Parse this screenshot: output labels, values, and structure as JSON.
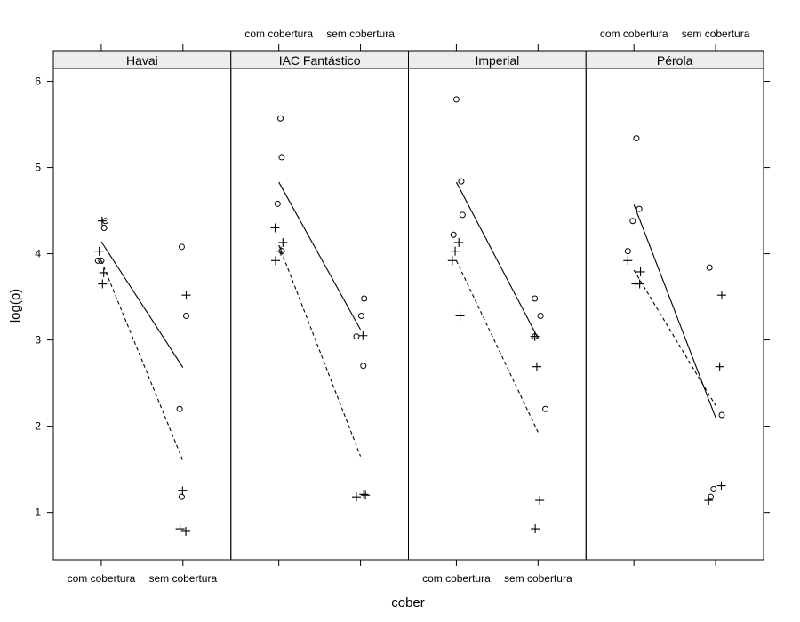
{
  "chart_data": {
    "type": "scatter",
    "xlabel": "cober",
    "ylabel": "log(p)",
    "ylim": [
      0.45,
      6.15
    ],
    "y_ticks": [
      1,
      2,
      3,
      4,
      5,
      6
    ],
    "x_categories": [
      "com cobertura",
      "sem cobertura"
    ],
    "markers": {
      "series_circle": "circle",
      "series_plus": "plus"
    },
    "line_styles": {
      "series_circle": "solid",
      "series_plus": "dashed"
    },
    "panels": [
      {
        "label": "Havai",
        "circle_points": [
          [
            -0.08,
            3.92
          ],
          [
            0.0,
            3.92
          ],
          [
            0.07,
            4.3
          ],
          [
            0.1,
            4.38
          ],
          [
            1.92,
            2.2
          ],
          [
            1.97,
            4.08
          ],
          [
            1.97,
            1.18
          ],
          [
            2.08,
            3.28
          ]
        ],
        "plus_points": [
          [
            -0.05,
            4.03
          ],
          [
            0.02,
            4.38
          ],
          [
            0.03,
            3.65
          ],
          [
            0.06,
            3.78
          ],
          [
            1.93,
            0.81
          ],
          [
            1.99,
            1.25
          ],
          [
            2.07,
            0.78
          ],
          [
            2.08,
            3.52
          ]
        ],
        "circle_line": [
          [
            0.0,
            4.14
          ],
          [
            2.0,
            2.68
          ]
        ],
        "plus_line": [
          [
            0.0,
            3.92
          ],
          [
            2.0,
            1.6
          ]
        ]
      },
      {
        "label": "IAC Fantástico",
        "circle_points": [
          [
            -0.03,
            4.58
          ],
          [
            0.04,
            5.57
          ],
          [
            0.07,
            4.03
          ],
          [
            0.07,
            5.12
          ],
          [
            1.9,
            3.04
          ],
          [
            2.02,
            3.28
          ],
          [
            2.07,
            2.7
          ],
          [
            2.09,
            3.48
          ]
        ],
        "plus_points": [
          [
            -0.09,
            4.3
          ],
          [
            -0.08,
            3.92
          ],
          [
            0.05,
            4.03
          ],
          [
            0.1,
            4.13
          ],
          [
            1.9,
            1.18
          ],
          [
            2.06,
            3.05
          ],
          [
            2.08,
            1.21
          ],
          [
            2.12,
            1.2
          ]
        ],
        "circle_line": [
          [
            0.0,
            4.83
          ],
          [
            2.0,
            3.12
          ]
        ],
        "plus_line": [
          [
            0.0,
            4.1
          ],
          [
            2.0,
            1.65
          ]
        ]
      },
      {
        "label": "Imperial",
        "circle_points": [
          [
            -0.07,
            4.22
          ],
          [
            0.0,
            5.79
          ],
          [
            0.12,
            4.84
          ],
          [
            0.15,
            4.45
          ],
          [
            1.92,
            3.04
          ],
          [
            1.92,
            3.48
          ],
          [
            2.06,
            3.28
          ],
          [
            2.18,
            2.2
          ]
        ],
        "plus_points": [
          [
            -0.1,
            3.92
          ],
          [
            -0.03,
            4.03
          ],
          [
            0.06,
            4.13
          ],
          [
            0.09,
            3.28
          ],
          [
            1.92,
            3.04
          ],
          [
            1.93,
            0.81
          ],
          [
            1.97,
            2.69
          ],
          [
            2.04,
            1.14
          ]
        ],
        "circle_line": [
          [
            0.0,
            4.83
          ],
          [
            2.0,
            3.02
          ]
        ],
        "plus_line": [
          [
            0.0,
            3.92
          ],
          [
            2.0,
            1.93
          ]
        ]
      },
      {
        "label": "Pérola",
        "circle_points": [
          [
            -0.15,
            4.03
          ],
          [
            -0.03,
            4.38
          ],
          [
            0.06,
            5.34
          ],
          [
            0.13,
            4.52
          ],
          [
            1.85,
            3.84
          ],
          [
            1.88,
            1.18
          ],
          [
            1.95,
            1.27
          ],
          [
            2.15,
            2.13
          ]
        ],
        "plus_points": [
          [
            -0.15,
            3.92
          ],
          [
            0.05,
            3.65
          ],
          [
            0.14,
            3.65
          ],
          [
            0.16,
            3.79
          ],
          [
            1.83,
            1.14
          ],
          [
            2.1,
            2.69
          ],
          [
            2.14,
            1.31
          ],
          [
            2.15,
            3.52
          ]
        ],
        "circle_line": [
          [
            0.0,
            4.57
          ],
          [
            2.0,
            2.1
          ]
        ],
        "plus_line": [
          [
            0.0,
            3.81
          ],
          [
            2.0,
            2.24
          ]
        ]
      }
    ]
  }
}
